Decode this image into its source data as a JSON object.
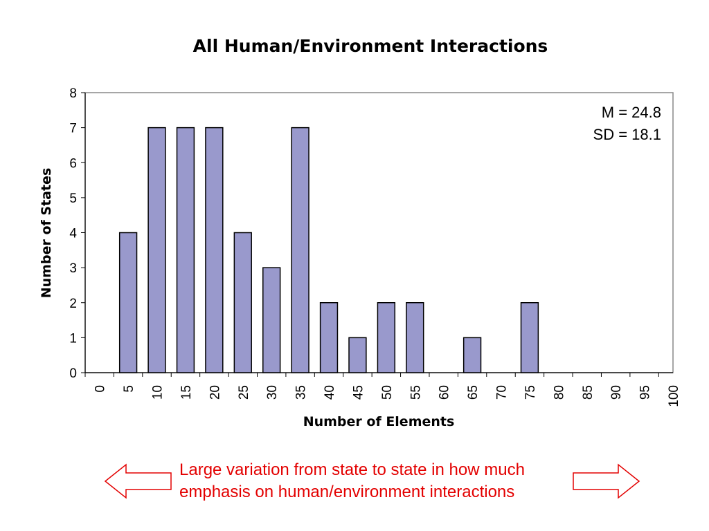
{
  "chart_data": {
    "type": "bar",
    "title": "All Human/Environment Interactions",
    "xlabel": "Number of Elements",
    "ylabel": "Number of States",
    "categories": [
      "0",
      "5",
      "10",
      "15",
      "20",
      "25",
      "30",
      "35",
      "40",
      "45",
      "50",
      "55",
      "60",
      "65",
      "70",
      "75",
      "80",
      "85",
      "90",
      "95",
      "100"
    ],
    "values": [
      0,
      4,
      7,
      7,
      7,
      4,
      3,
      7,
      2,
      1,
      2,
      2,
      0,
      1,
      0,
      2,
      0,
      0,
      0,
      0,
      0
    ],
    "ylim": [
      0,
      8
    ],
    "yticks": [
      "0",
      "1",
      "2",
      "3",
      "4",
      "5",
      "6",
      "7",
      "8"
    ],
    "grid": false,
    "annotations": [
      "M = 24.8",
      "SD = 18.1"
    ],
    "bar_color": "#9999cc"
  },
  "caption": {
    "line1": "Large variation from state to state in how much",
    "line2": "emphasis on human/environment interactions",
    "color": "#e30000"
  },
  "arrows": {
    "left": "left-arrow-icon",
    "right": "right-arrow-icon",
    "color": "#e30000"
  }
}
